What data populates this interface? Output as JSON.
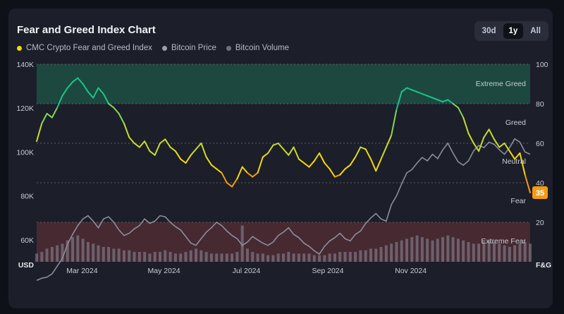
{
  "header": {
    "title": "Fear and Greed Index Chart",
    "ranges": [
      {
        "label": "30d",
        "active": false
      },
      {
        "label": "1y",
        "active": true
      },
      {
        "label": "All",
        "active": false
      }
    ]
  },
  "legend": [
    {
      "label": "CMC Crypto Fear and Greed Index",
      "color": "#f5d90a"
    },
    {
      "label": "Bitcoin Price",
      "color": "#9aa0ad"
    },
    {
      "label": "Bitcoin Volume",
      "color": "#6e7380"
    }
  ],
  "colors": {
    "extreme_greed_zone": "#1e5a4a",
    "extreme_fear_zone": "#5a2e36",
    "price_line": "#8a8f9c",
    "volume_bars": "#8a8f9c",
    "badge": "#f39c12",
    "greed_color": "#16c784",
    "neutral_color": "#f5d90a",
    "fear_color": "#f39c12"
  },
  "chart_data": {
    "type": "line",
    "title": "Fear and Greed Index Chart",
    "x_start": "2024-01-20",
    "x_end": "2025-01-20",
    "x_ticks": [
      "Mar 2024",
      "May 2024",
      "Jul 2024",
      "Sep 2024",
      "Nov 2024"
    ],
    "left_axis": {
      "unit_label": "USD",
      "range": [
        50000,
        140000
      ],
      "ticks": [
        "60K",
        "80K",
        "100K",
        "120K",
        "140K"
      ],
      "tick_values": [
        60000,
        80000,
        100000,
        120000,
        140000
      ]
    },
    "right_axis": {
      "unit_label": "F&G",
      "range": [
        0,
        100
      ],
      "ticks": [
        "20",
        "40",
        "60",
        "80",
        "100"
      ],
      "tick_values": [
        20,
        40,
        60,
        80,
        100
      ]
    },
    "zones": [
      {
        "label": "Extreme Greed",
        "from": 80,
        "to": 100
      },
      {
        "label": "Greed",
        "from": 60,
        "to": 80
      },
      {
        "label": "Neutral",
        "from": 40,
        "to": 60
      },
      {
        "label": "Fear",
        "from": 20,
        "to": 40
      },
      {
        "label": "Extreme Fear",
        "from": 0,
        "to": 20
      }
    ],
    "latest_value": "35",
    "grid": true,
    "legend_position": "top-left",
    "series": [
      {
        "name": "CMC Crypto Fear and Greed Index",
        "axis": "right",
        "values": [
          61,
          70,
          75,
          73,
          78,
          84,
          88,
          91,
          93,
          90,
          86,
          83,
          88,
          85,
          80,
          78,
          75,
          70,
          63,
          60,
          58,
          61,
          56,
          54,
          60,
          62,
          58,
          56,
          52,
          50,
          54,
          57,
          60,
          53,
          49,
          47,
          45,
          40,
          38,
          42,
          48,
          45,
          43,
          45,
          53,
          55,
          59,
          60,
          57,
          54,
          58,
          52,
          50,
          48,
          51,
          55,
          50,
          47,
          43,
          44,
          47,
          49,
          53,
          58,
          57,
          52,
          46,
          52,
          58,
          64,
          77,
          86,
          88,
          87,
          86,
          85,
          84,
          83,
          82,
          81,
          82,
          80,
          78,
          73,
          65,
          60,
          56,
          63,
          67,
          62,
          58,
          60,
          56,
          52,
          55,
          44,
          35
        ]
      },
      {
        "name": "Bitcoin Price",
        "axis": "left",
        "values": [
          41500,
          42500,
          43000,
          44500,
          48000,
          51500,
          58000,
          62500,
          66500,
          69500,
          71000,
          68500,
          65500,
          69500,
          70500,
          68000,
          64500,
          62000,
          63000,
          65000,
          66500,
          69500,
          67500,
          68500,
          71000,
          70500,
          68000,
          66000,
          64500,
          61500,
          58500,
          57500,
          60500,
          63500,
          65500,
          68000,
          66500,
          64000,
          62000,
          60500,
          57500,
          59000,
          61500,
          60000,
          58500,
          57500,
          59000,
          62000,
          63500,
          65500,
          62500,
          61000,
          58500,
          57000,
          55000,
          53500,
          57000,
          59500,
          61000,
          63000,
          60500,
          59500,
          62500,
          64000,
          67500,
          70000,
          72000,
          69500,
          68500,
          76000,
          80000,
          85500,
          90500,
          92000,
          95000,
          97500,
          96000,
          99000,
          97000,
          101000,
          104000,
          99500,
          95500,
          94000,
          96000,
          100500,
          103000,
          102000,
          104500,
          103500,
          101000,
          99000,
          102000,
          106000,
          104500,
          100000,
          99000
        ]
      },
      {
        "name": "Bitcoin Volume",
        "axis": "volume",
        "values": [
          5,
          6,
          8,
          9,
          10,
          11,
          13,
          15,
          16,
          14,
          12,
          11,
          10,
          9,
          9,
          8,
          8,
          7,
          7,
          6,
          6,
          6,
          5,
          6,
          6,
          7,
          6,
          5,
          5,
          6,
          7,
          8,
          7,
          6,
          5,
          5,
          5,
          5,
          5,
          6,
          22,
          8,
          6,
          5,
          5,
          4,
          4,
          5,
          5,
          6,
          5,
          5,
          5,
          5,
          4,
          4,
          4,
          5,
          5,
          6,
          6,
          6,
          6,
          7,
          7,
          8,
          8,
          9,
          10,
          11,
          12,
          13,
          14,
          15,
          16,
          15,
          14,
          13,
          14,
          15,
          16,
          15,
          14,
          13,
          12,
          11,
          11,
          12,
          13,
          12,
          11,
          10,
          9,
          10,
          11,
          12,
          11
        ]
      }
    ]
  }
}
